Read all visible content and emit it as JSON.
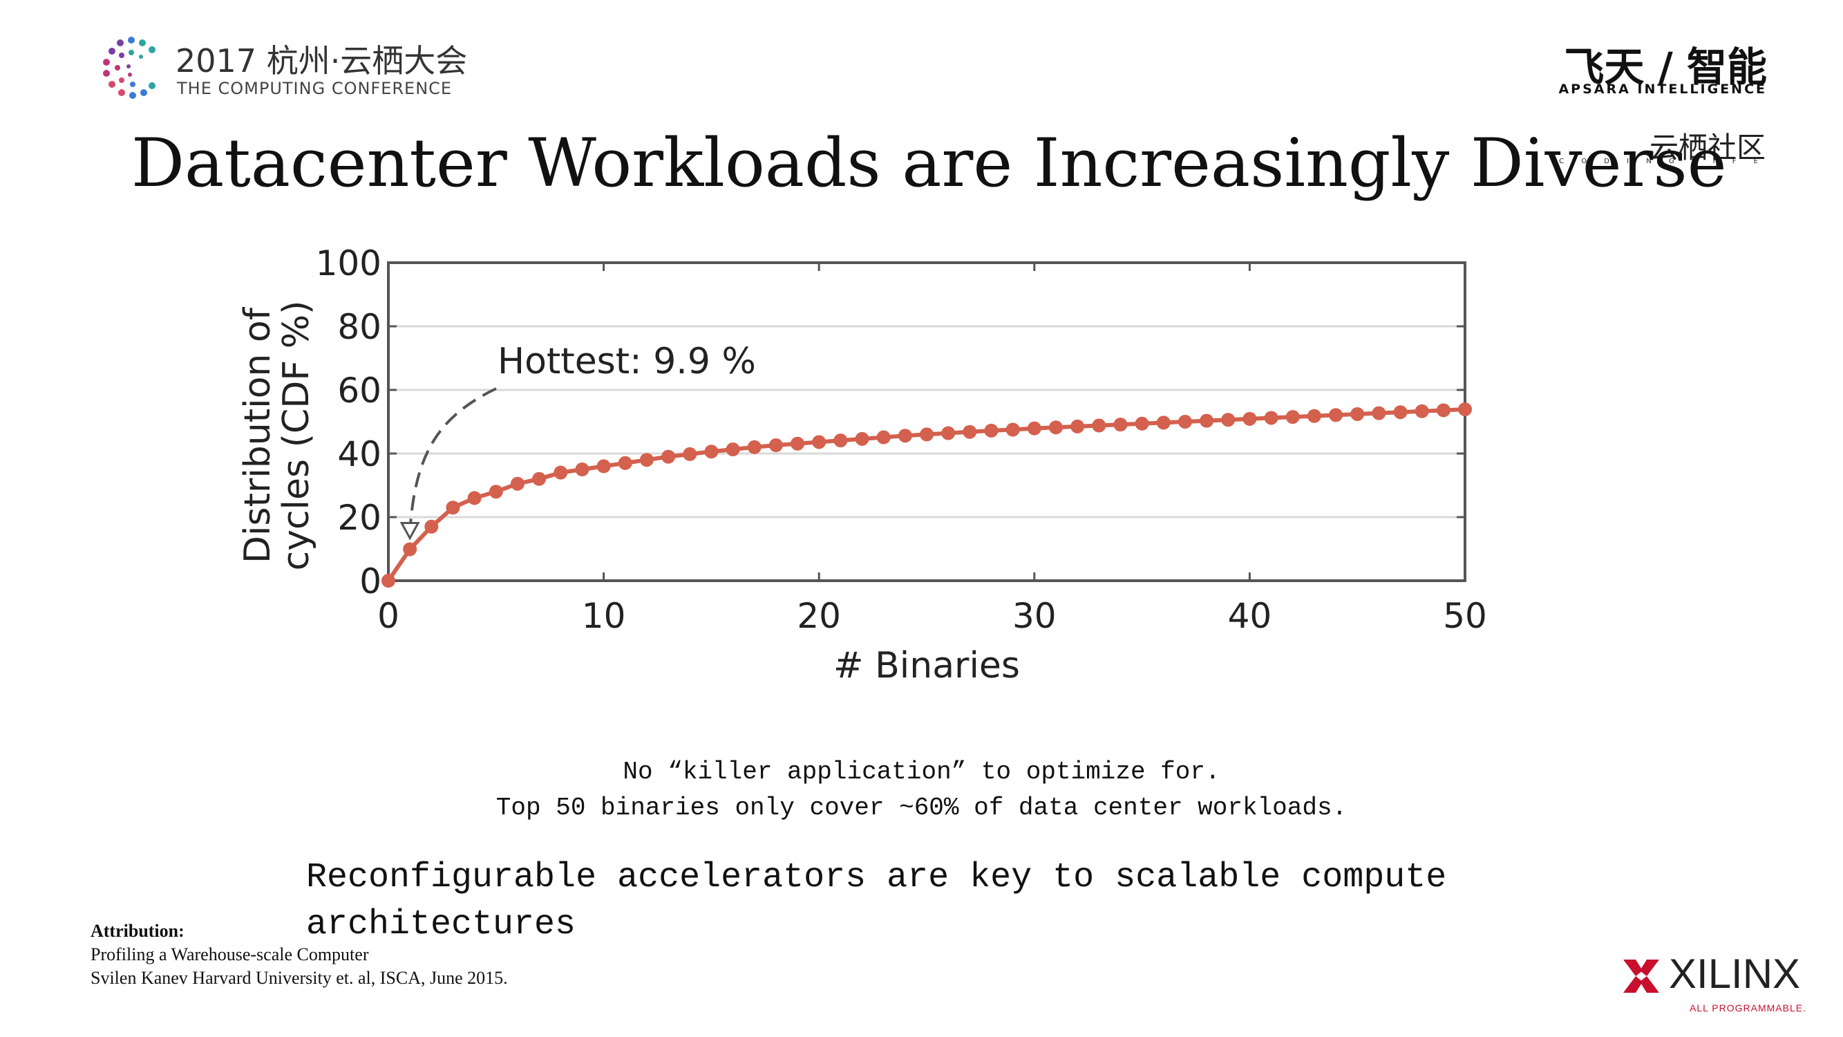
{
  "header": {
    "conference_title": "2017 杭州·云栖大会",
    "conference_subtitle": "THE COMPUTING CONFERENCE",
    "brand_cn": "飞天 / 智能",
    "brand_en": "APSARA INTELLIGENCE",
    "community_cn": "云栖社区",
    "community_en": "C O D I N G   L I F E"
  },
  "slide": {
    "title": "Datacenter Workloads are Increasingly Diverse",
    "caption_line1": "No “killer application” to optimize for.",
    "caption_line2": "Top 50 binaries only cover ~60% of data center workloads.",
    "takeaway": "Reconfigurable accelerators are key to scalable compute architectures"
  },
  "attribution": {
    "label": "Attribution:",
    "line1": "Profiling a Warehouse-scale Computer",
    "line2": "Svilen Kanev Harvard University et. al, ISCA, June 2015."
  },
  "footer": {
    "xilinx_name": "XILINX",
    "xilinx_tagline": "ALL PROGRAMMABLE."
  },
  "colors": {
    "series": "#d4604e",
    "grid": "#d9d9d9",
    "axis": "#555555",
    "xilinx_red": "#c8102e"
  },
  "chart_data": {
    "type": "line",
    "xlabel": "# Binaries",
    "ylabel": "Distribution of cycles (CDF %)",
    "annotation": "Hottest: 9.9 %",
    "xlim": [
      0,
      50
    ],
    "ylim": [
      0,
      100
    ],
    "xticks": [
      0,
      10,
      20,
      30,
      40,
      50
    ],
    "yticks": [
      0,
      20,
      40,
      60,
      80,
      100
    ],
    "grid": "horizontal",
    "series": [
      {
        "x": [
          0,
          1,
          2,
          3,
          4,
          5,
          6,
          7,
          8,
          9,
          10,
          11,
          12,
          13,
          14,
          15,
          16,
          17,
          18,
          19,
          20,
          21,
          22,
          23,
          24,
          25,
          26,
          27,
          28,
          29,
          30,
          31,
          32,
          33,
          34,
          35,
          36,
          37,
          38,
          39,
          40,
          41,
          42,
          43,
          44,
          45,
          46,
          47,
          48,
          49,
          50
        ],
        "values": [
          0,
          9.9,
          17,
          23,
          26,
          28,
          30.5,
          32,
          34,
          35,
          36,
          37,
          38,
          39,
          39.8,
          40.6,
          41.3,
          42,
          42.6,
          43.1,
          43.6,
          44.1,
          44.6,
          45.1,
          45.6,
          46,
          46.4,
          46.8,
          47.2,
          47.5,
          47.9,
          48.2,
          48.5,
          48.8,
          49.1,
          49.4,
          49.7,
          50,
          50.3,
          50.6,
          50.9,
          51.2,
          51.5,
          51.8,
          52.1,
          52.4,
          52.7,
          53,
          53.3,
          53.6,
          53.9
        ]
      }
    ]
  }
}
